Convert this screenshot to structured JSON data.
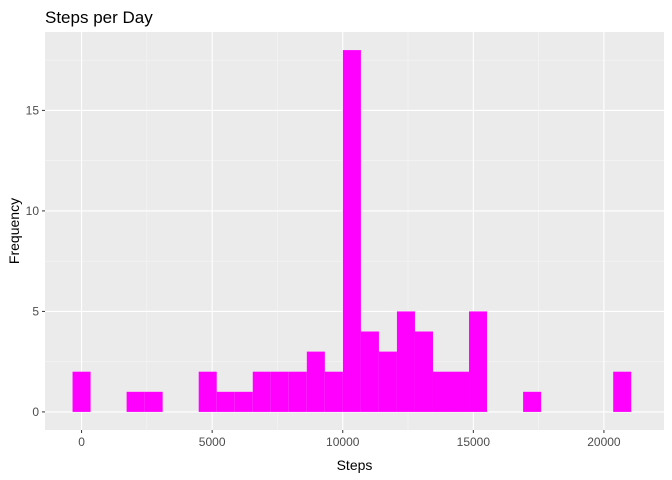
{
  "chart_data": {
    "type": "bar",
    "title": "Steps per Day",
    "xlabel": "Steps",
    "ylabel": "Frequency",
    "bin_width": 690,
    "bins": [
      {
        "center": 0,
        "count": 2
      },
      {
        "center": 2070,
        "count": 1
      },
      {
        "center": 2760,
        "count": 1
      },
      {
        "center": 4830,
        "count": 2
      },
      {
        "center": 5520,
        "count": 1
      },
      {
        "center": 6210,
        "count": 1
      },
      {
        "center": 6900,
        "count": 2
      },
      {
        "center": 7590,
        "count": 2
      },
      {
        "center": 8280,
        "count": 2
      },
      {
        "center": 8970,
        "count": 3
      },
      {
        "center": 9660,
        "count": 2
      },
      {
        "center": 10350,
        "count": 18
      },
      {
        "center": 11040,
        "count": 4
      },
      {
        "center": 11730,
        "count": 3
      },
      {
        "center": 12420,
        "count": 5
      },
      {
        "center": 13110,
        "count": 4
      },
      {
        "center": 13800,
        "count": 2
      },
      {
        "center": 14490,
        "count": 2
      },
      {
        "center": 15180,
        "count": 5
      },
      {
        "center": 17250,
        "count": 1
      },
      {
        "center": 20700,
        "count": 2
      }
    ],
    "xlim": [
      -1400,
      22300
    ],
    "ylim": [
      -0.9,
      18.9
    ],
    "x_ticks": [
      0,
      5000,
      10000,
      15000,
      20000
    ],
    "x_minor": [
      2500,
      7500,
      12500,
      17500
    ],
    "y_ticks": [
      0,
      5,
      10,
      15
    ],
    "y_minor": [
      2.5,
      7.5,
      12.5,
      17.5
    ],
    "bar_color": "#FF00FF",
    "panel_color": "#EBEBEB",
    "grid": true,
    "legend": "none"
  }
}
